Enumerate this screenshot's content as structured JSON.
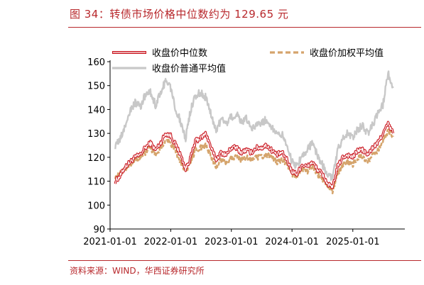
{
  "header": {
    "title": "图 34：转债市场价格中位数约为 129.65 元"
  },
  "footer": {
    "source": "资料来源：WIND，华西证券研究所"
  },
  "chart_data": {
    "type": "line",
    "title": "",
    "xlabel": "",
    "ylabel": "",
    "ylim": [
      90,
      160
    ],
    "yticks": [
      90,
      100,
      110,
      120,
      130,
      140,
      150,
      160
    ],
    "xticks": [
      "2021-01-01",
      "2022-01-01",
      "2023-01-01",
      "2024-01-01",
      "2025-01-01"
    ],
    "legend": "top",
    "series": [
      {
        "name": "收盘价中位数",
        "color": "#c9151e",
        "style": "double",
        "points": [
          [
            "2021-02-01",
            110
          ],
          [
            "2021-03-01",
            112
          ],
          [
            "2021-04-01",
            116
          ],
          [
            "2021-05-01",
            118
          ],
          [
            "2021-06-01",
            120
          ],
          [
            "2021-07-01",
            121
          ],
          [
            "2021-08-01",
            124
          ],
          [
            "2021-09-01",
            126
          ],
          [
            "2021-10-01",
            123
          ],
          [
            "2021-11-01",
            126
          ],
          [
            "2021-12-01",
            130
          ],
          [
            "2022-01-01",
            129
          ],
          [
            "2022-02-01",
            125
          ],
          [
            "2022-03-01",
            121
          ],
          [
            "2022-04-01",
            115
          ],
          [
            "2022-05-01",
            120
          ],
          [
            "2022-06-01",
            127
          ],
          [
            "2022-07-01",
            128
          ],
          [
            "2022-08-01",
            130
          ],
          [
            "2022-09-01",
            124
          ],
          [
            "2022-10-01",
            119
          ],
          [
            "2022-11-01",
            122
          ],
          [
            "2022-12-01",
            121
          ],
          [
            "2023-01-01",
            124
          ],
          [
            "2023-02-01",
            124
          ],
          [
            "2023-03-01",
            122
          ],
          [
            "2023-04-01",
            123
          ],
          [
            "2023-05-01",
            122
          ],
          [
            "2023-06-01",
            124
          ],
          [
            "2023-07-01",
            124
          ],
          [
            "2023-08-01",
            125
          ],
          [
            "2023-09-01",
            123
          ],
          [
            "2023-10-01",
            121
          ],
          [
            "2023-11-01",
            122
          ],
          [
            "2023-12-01",
            119
          ],
          [
            "2024-01-01",
            114
          ],
          [
            "2024-02-01",
            113
          ],
          [
            "2024-03-01",
            117
          ],
          [
            "2024-04-01",
            116
          ],
          [
            "2024-05-01",
            118
          ],
          [
            "2024-06-01",
            115
          ],
          [
            "2024-07-01",
            113
          ],
          [
            "2024-08-01",
            109
          ],
          [
            "2024-09-01",
            107
          ],
          [
            "2024-10-01",
            116
          ],
          [
            "2024-11-01",
            120
          ],
          [
            "2024-12-01",
            121
          ],
          [
            "2025-01-01",
            120
          ],
          [
            "2025-02-01",
            123
          ],
          [
            "2025-03-01",
            123
          ],
          [
            "2025-04-01",
            121
          ],
          [
            "2025-05-01",
            124
          ],
          [
            "2025-06-01",
            126
          ],
          [
            "2025-07-01",
            130
          ],
          [
            "2025-08-01",
            134
          ],
          [
            "2025-09-01",
            130
          ]
        ]
      },
      {
        "name": "收盘价加权平均值",
        "color": "#d5a46c",
        "style": "dashed",
        "points": [
          [
            "2021-02-01",
            112
          ],
          [
            "2021-03-01",
            113
          ],
          [
            "2021-04-01",
            115
          ],
          [
            "2021-05-01",
            117
          ],
          [
            "2021-06-01",
            119
          ],
          [
            "2021-07-01",
            120
          ],
          [
            "2021-08-01",
            122
          ],
          [
            "2021-09-01",
            124
          ],
          [
            "2021-10-01",
            121
          ],
          [
            "2021-11-01",
            124
          ],
          [
            "2021-12-01",
            127
          ],
          [
            "2022-01-01",
            126
          ],
          [
            "2022-02-01",
            122
          ],
          [
            "2022-03-01",
            118
          ],
          [
            "2022-04-01",
            114
          ],
          [
            "2022-05-01",
            118
          ],
          [
            "2022-06-01",
            123
          ],
          [
            "2022-07-01",
            124
          ],
          [
            "2022-08-01",
            125
          ],
          [
            "2022-09-01",
            120
          ],
          [
            "2022-10-01",
            116
          ],
          [
            "2022-11-01",
            119
          ],
          [
            "2022-12-01",
            118
          ],
          [
            "2023-01-01",
            120
          ],
          [
            "2023-02-01",
            120
          ],
          [
            "2023-03-01",
            119
          ],
          [
            "2023-04-01",
            120
          ],
          [
            "2023-05-01",
            119
          ],
          [
            "2023-06-01",
            120
          ],
          [
            "2023-07-01",
            120
          ],
          [
            "2023-08-01",
            121
          ],
          [
            "2023-09-01",
            120
          ],
          [
            "2023-10-01",
            118
          ],
          [
            "2023-11-01",
            119
          ],
          [
            "2023-12-01",
            117
          ],
          [
            "2024-01-01",
            113
          ],
          [
            "2024-02-01",
            112
          ],
          [
            "2024-03-01",
            115
          ],
          [
            "2024-04-01",
            114
          ],
          [
            "2024-05-01",
            116
          ],
          [
            "2024-06-01",
            113
          ],
          [
            "2024-07-01",
            111
          ],
          [
            "2024-08-01",
            108
          ],
          [
            "2024-09-01",
            106
          ],
          [
            "2024-10-01",
            113
          ],
          [
            "2024-11-01",
            117
          ],
          [
            "2024-12-01",
            118
          ],
          [
            "2025-01-01",
            117
          ],
          [
            "2025-02-01",
            120
          ],
          [
            "2025-03-01",
            120
          ],
          [
            "2025-04-01",
            118
          ],
          [
            "2025-05-01",
            121
          ],
          [
            "2025-06-01",
            123
          ],
          [
            "2025-07-01",
            127
          ],
          [
            "2025-08-01",
            131
          ],
          [
            "2025-09-01",
            129
          ]
        ]
      },
      {
        "name": "收盘价普通平均值",
        "color": "#c8c8c8",
        "style": "solid",
        "points": [
          [
            "2021-02-01",
            125
          ],
          [
            "2021-03-01",
            127
          ],
          [
            "2021-04-01",
            133
          ],
          [
            "2021-05-01",
            139
          ],
          [
            "2021-06-01",
            143
          ],
          [
            "2021-07-01",
            141
          ],
          [
            "2021-08-01",
            146
          ],
          [
            "2021-09-01",
            147
          ],
          [
            "2021-10-01",
            142
          ],
          [
            "2021-11-01",
            147
          ],
          [
            "2021-12-01",
            152
          ],
          [
            "2022-01-01",
            149
          ],
          [
            "2022-02-01",
            140
          ],
          [
            "2022-03-01",
            135
          ],
          [
            "2022-04-01",
            128
          ],
          [
            "2022-05-01",
            140
          ],
          [
            "2022-06-01",
            146
          ],
          [
            "2022-07-01",
            147
          ],
          [
            "2022-08-01",
            145
          ],
          [
            "2022-09-01",
            138
          ],
          [
            "2022-10-01",
            131
          ],
          [
            "2022-11-01",
            136
          ],
          [
            "2022-12-01",
            134
          ],
          [
            "2023-01-01",
            137
          ],
          [
            "2023-02-01",
            138
          ],
          [
            "2023-03-01",
            135
          ],
          [
            "2023-04-01",
            136
          ],
          [
            "2023-05-01",
            132
          ],
          [
            "2023-06-01",
            134
          ],
          [
            "2023-07-01",
            134
          ],
          [
            "2023-08-01",
            136
          ],
          [
            "2023-09-01",
            133
          ],
          [
            "2023-10-01",
            129
          ],
          [
            "2023-11-01",
            130
          ],
          [
            "2023-12-01",
            125
          ],
          [
            "2024-01-01",
            118
          ],
          [
            "2024-02-01",
            116
          ],
          [
            "2024-03-01",
            121
          ],
          [
            "2024-04-01",
            123
          ],
          [
            "2024-05-01",
            126
          ],
          [
            "2024-06-01",
            121
          ],
          [
            "2024-07-01",
            117
          ],
          [
            "2024-08-01",
            113
          ],
          [
            "2024-09-01",
            111
          ],
          [
            "2024-10-01",
            123
          ],
          [
            "2024-11-01",
            128
          ],
          [
            "2024-12-01",
            130
          ],
          [
            "2025-01-01",
            128
          ],
          [
            "2025-02-01",
            132
          ],
          [
            "2025-03-01",
            133
          ],
          [
            "2025-04-01",
            130
          ],
          [
            "2025-05-01",
            134
          ],
          [
            "2025-06-01",
            138
          ],
          [
            "2025-07-01",
            142
          ],
          [
            "2025-08-01",
            155
          ],
          [
            "2025-09-01",
            149
          ]
        ]
      }
    ]
  }
}
